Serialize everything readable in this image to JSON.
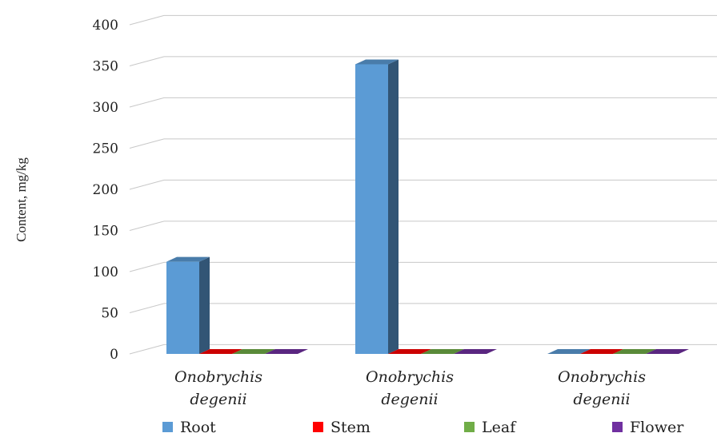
{
  "chart_data": {
    "type": "bar",
    "ylabel": "Content, mg/kg",
    "ylim": [
      0,
      400
    ],
    "yticks": [
      "0",
      "50",
      "100",
      "150",
      "200",
      "250",
      "300",
      "350",
      "400"
    ],
    "categories": [
      [
        "Onobrychis",
        "degenii"
      ],
      [
        "Onobrychis",
        "degenii"
      ],
      [
        "Onobrychis",
        "degenii"
      ]
    ],
    "series": [
      {
        "name": "Root",
        "color": "#5b9bd5",
        "values": [
          112,
          352,
          0
        ]
      },
      {
        "name": "Stem",
        "color": "#ff0000",
        "values": [
          0,
          0,
          0
        ]
      },
      {
        "name": "Leaf",
        "color": "#70ad47",
        "values": [
          0,
          0,
          0
        ]
      },
      {
        "name": "Flower",
        "color": "#7030a0",
        "values": [
          0,
          0,
          0
        ]
      }
    ],
    "grid": true,
    "legend": "bottom"
  }
}
